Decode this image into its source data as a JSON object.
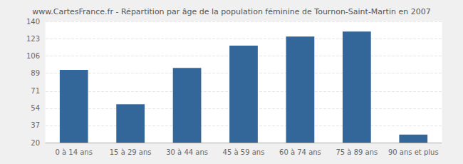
{
  "chart_data": {
    "type": "bar",
    "title": "www.CartesFrance.fr - Répartition par âge de la population féminine de Tournon-Saint-Martin en 2007",
    "categories": [
      "0 à 14 ans",
      "15 à 29 ans",
      "30 à 44 ans",
      "45 à 59 ans",
      "60 à 74 ans",
      "75 à 89 ans",
      "90 ans et plus"
    ],
    "values": [
      92,
      58,
      94,
      116,
      125,
      130,
      28
    ],
    "color": "#336699",
    "ylim": [
      20,
      140
    ],
    "yticks": [
      20,
      37,
      54,
      71,
      89,
      106,
      123,
      140
    ],
    "grid": true
  }
}
